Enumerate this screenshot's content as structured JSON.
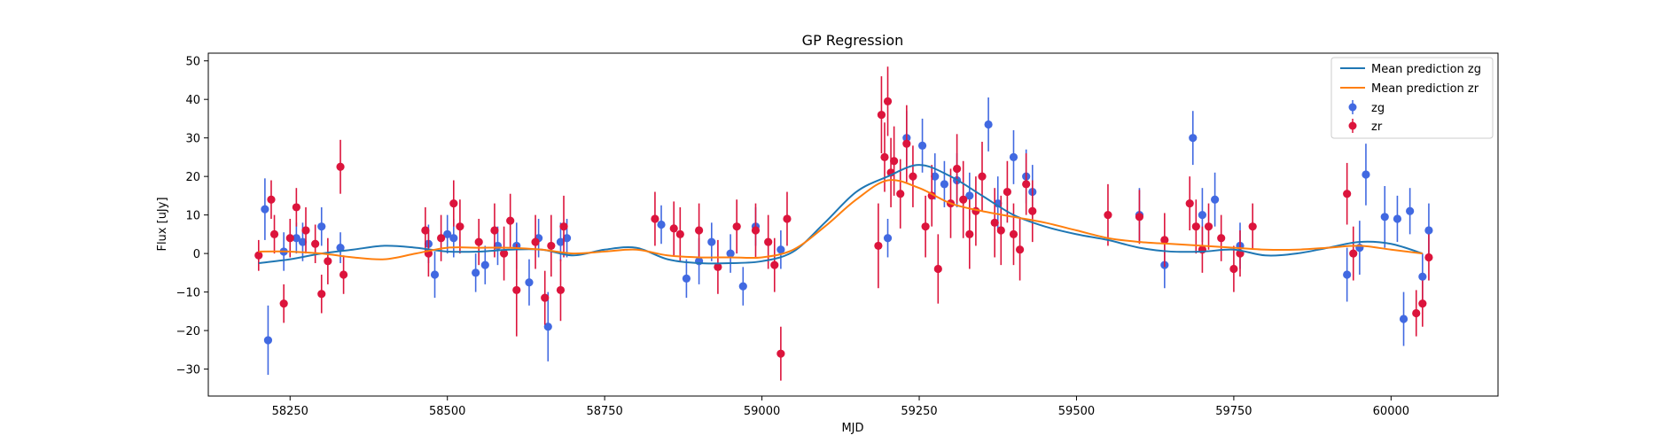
{
  "chart_data": {
    "type": "scatter",
    "title": "GP Regression",
    "xlabel": "MJD",
    "ylabel": "Flux [uJy]",
    "xlim": [
      58120,
      60170
    ],
    "ylim": [
      -37,
      52
    ],
    "xticks": [
      58250,
      58500,
      58750,
      59000,
      59250,
      59500,
      59750,
      60000
    ],
    "yticks": [
      -30,
      -20,
      -10,
      0,
      10,
      20,
      30,
      40,
      50
    ],
    "ytick_labels": [
      "−30",
      "−20",
      "−10",
      "0",
      "10",
      "20",
      "30",
      "40",
      "50"
    ],
    "legend_position": "top-right",
    "lines": [
      {
        "name": "Mean prediction zg",
        "color": "#1f77b4",
        "x": [
          58200,
          58250,
          58300,
          58350,
          58400,
          58450,
          58500,
          58550,
          58600,
          58650,
          58700,
          58750,
          58800,
          58850,
          58900,
          58950,
          59000,
          59050,
          59100,
          59150,
          59200,
          59250,
          59300,
          59350,
          59400,
          59450,
          59500,
          59550,
          59600,
          59650,
          59700,
          59750,
          59800,
          59850,
          59900,
          59950,
          60000,
          60050
        ],
        "y": [
          -2.5,
          -1.5,
          0,
          1,
          2,
          1.5,
          0.5,
          0.5,
          1,
          1,
          -0.5,
          1,
          1.5,
          -1.5,
          -2.5,
          -2.5,
          -2,
          0.5,
          8,
          16,
          20,
          23,
          20,
          15,
          10,
          7,
          5,
          3.5,
          1.5,
          0.5,
          0.5,
          1,
          -0.5,
          0,
          1.5,
          3,
          2.5,
          0
        ]
      },
      {
        "name": "Mean prediction zr",
        "color": "#ff7f0e",
        "x": [
          58200,
          58250,
          58300,
          58350,
          58400,
          58450,
          58500,
          58550,
          58600,
          58650,
          58700,
          58750,
          58800,
          58850,
          58900,
          58950,
          59000,
          59050,
          59100,
          59150,
          59200,
          59250,
          59300,
          59350,
          59400,
          59450,
          59500,
          59550,
          59600,
          59650,
          59700,
          59750,
          59800,
          59850,
          59900,
          59950,
          60000,
          60050
        ],
        "y": [
          0.5,
          0.5,
          0,
          -1,
          -1.5,
          0,
          1.5,
          1.5,
          1.5,
          1,
          0,
          0.5,
          1,
          -0.5,
          -1,
          -1,
          -1,
          1,
          7,
          14,
          19,
          17,
          13,
          11,
          9.5,
          8,
          6,
          4,
          3,
          2.5,
          2,
          1.5,
          1,
          1,
          1.5,
          2,
          1,
          0
        ]
      }
    ],
    "series": [
      {
        "name": "zg",
        "color": "#4169e1",
        "x": [
          58210,
          58215,
          58240,
          58260,
          58270,
          58300,
          58330,
          58470,
          58480,
          58500,
          58510,
          58545,
          58560,
          58580,
          58610,
          58630,
          58645,
          58660,
          58680,
          58690,
          58840,
          58880,
          58900,
          58920,
          58950,
          58970,
          58990,
          59030,
          59200,
          59230,
          59255,
          59275,
          59290,
          59310,
          59330,
          59360,
          59375,
          59400,
          59420,
          59430,
          59600,
          59640,
          59685,
          59700,
          59720,
          59760,
          59930,
          59950,
          59960,
          59990,
          60010,
          60020,
          60030,
          60050,
          60060
        ],
        "y": [
          11.5,
          -22.5,
          0.5,
          4,
          3,
          7,
          1.5,
          2.5,
          -5.5,
          5,
          4,
          -5,
          -3,
          2,
          2,
          -7.5,
          4,
          -19,
          3,
          4,
          7.5,
          -6.5,
          -2,
          3,
          0,
          -8.5,
          7,
          1,
          4,
          30,
          28,
          20,
          18,
          19,
          15,
          33.5,
          13,
          25,
          20,
          16,
          10,
          -3,
          30,
          10,
          14,
          2,
          -5.5,
          1.5,
          20.5,
          9.5,
          9,
          -17,
          11,
          -6,
          6
        ],
        "err": [
          8,
          9,
          5,
          4,
          5,
          5,
          4,
          5,
          6,
          5,
          5,
          5,
          5,
          5,
          6,
          6,
          5,
          9,
          5,
          5,
          5,
          5,
          6,
          5,
          5,
          5,
          5,
          5,
          5,
          7,
          7,
          6,
          6,
          7,
          6,
          7,
          7,
          7,
          7,
          7,
          7,
          6,
          7,
          7,
          7,
          6,
          7,
          7,
          8,
          8,
          6,
          7,
          6,
          6,
          7
        ]
      },
      {
        "name": "zr",
        "color": "#dc143c",
        "x": [
          58200,
          58220,
          58225,
          58240,
          58250,
          58260,
          58275,
          58290,
          58300,
          58310,
          58330,
          58335,
          58465,
          58470,
          58490,
          58510,
          58520,
          58550,
          58575,
          58590,
          58600,
          58610,
          58640,
          58655,
          58665,
          58680,
          58685,
          58830,
          58860,
          58870,
          58900,
          58930,
          58960,
          58990,
          59010,
          59020,
          59030,
          59040,
          59185,
          59190,
          59195,
          59200,
          59205,
          59210,
          59220,
          59230,
          59240,
          59260,
          59270,
          59280,
          59300,
          59310,
          59320,
          59330,
          59340,
          59350,
          59370,
          59380,
          59390,
          59400,
          59410,
          59420,
          59430,
          59550,
          59600,
          59640,
          59680,
          59690,
          59700,
          59710,
          59730,
          59750,
          59760,
          59780,
          59930,
          59940,
          60040,
          60050,
          60060
        ],
        "y": [
          -0.5,
          14,
          5,
          -13,
          4,
          12,
          6,
          2.5,
          -10.5,
          -2,
          22.5,
          -5.5,
          6,
          0,
          4,
          13,
          7,
          3,
          6,
          0,
          8.5,
          -9.5,
          3,
          -11.5,
          2,
          -9.5,
          7,
          9,
          6.5,
          5,
          6,
          -3.5,
          7,
          6,
          3,
          -3,
          -26,
          9,
          2,
          36,
          25,
          39.5,
          21,
          24,
          15.5,
          28.5,
          20,
          7,
          15,
          -4,
          13,
          22,
          14,
          5,
          11,
          20,
          8,
          6,
          16,
          5,
          1,
          18,
          11,
          10,
          9.5,
          3.5,
          13,
          7,
          1,
          7,
          4,
          -4,
          0,
          7,
          15.5,
          0,
          -15.5,
          -13,
          -1
        ],
        "err": [
          4,
          5,
          5,
          5,
          5,
          5,
          6,
          5,
          5,
          6,
          7,
          5,
          6,
          6,
          6,
          6,
          7,
          6,
          7,
          7,
          7,
          12,
          7,
          7,
          8,
          8,
          8,
          7,
          7,
          7,
          7,
          7,
          7,
          7,
          7,
          7,
          7,
          7,
          11,
          10,
          9,
          9,
          9,
          9,
          9,
          10,
          8,
          8,
          8,
          9,
          9,
          9,
          10,
          9,
          9,
          9,
          9,
          9,
          8,
          8,
          8,
          8,
          8,
          8,
          7,
          7,
          7,
          7,
          6,
          6,
          6,
          6,
          6,
          6,
          8,
          7,
          6,
          6,
          6
        ]
      }
    ]
  }
}
